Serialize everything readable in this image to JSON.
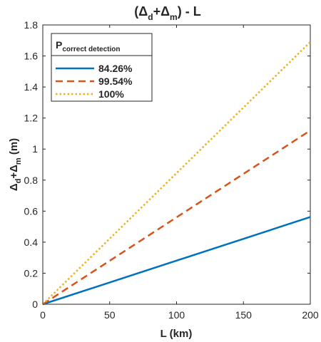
{
  "chart_data": {
    "type": "line",
    "title": {
      "open": "(Δ",
      "sub1": "d",
      "mid": "+Δ",
      "sub2": "m",
      "close": ")  -   L"
    },
    "xlabel": "L (km)",
    "ylabel": {
      "p1": "Δ",
      "sub1": "d",
      "p2": "+Δ",
      "sub2": "m",
      "p3": " (m)"
    },
    "xlim": [
      0,
      200
    ],
    "ylim": [
      0,
      1.8
    ],
    "xticks": [
      0,
      50,
      100,
      150,
      200
    ],
    "yticks": [
      0,
      0.2,
      0.4,
      0.6,
      0.8,
      1,
      1.2,
      1.4,
      1.6,
      1.8
    ],
    "grid": false,
    "legend": {
      "placement": "top-left",
      "title_main": "P",
      "title_sub": "correct detection"
    },
    "series": [
      {
        "name": "84.26%",
        "x": [
          0,
          200
        ],
        "y": [
          0,
          0.562
        ],
        "color": "#0072BD",
        "style": "solid"
      },
      {
        "name": "99.54%",
        "x": [
          0,
          200
        ],
        "y": [
          0,
          1.12
        ],
        "color": "#D95319",
        "style": "dashed"
      },
      {
        "name": "100%",
        "x": [
          0,
          200
        ],
        "y": [
          0,
          1.69
        ],
        "color": "#EDB120",
        "style": "dotted"
      }
    ]
  }
}
